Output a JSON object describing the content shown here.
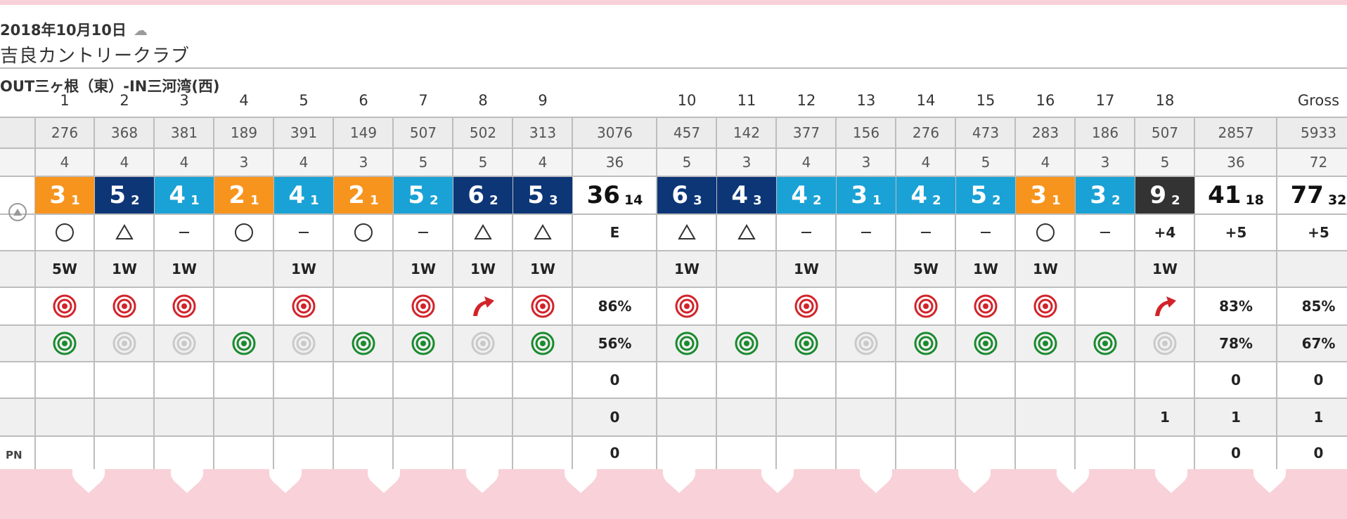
{
  "header": {
    "date": "2018年10月10日",
    "weather_icon": "cloud-icon",
    "club_name": "吉良カントリークラブ",
    "course_name": "OUT三ヶ根（東）-IN三河湾(西)"
  },
  "rows_labels": {
    "pn_label": "PN",
    "gross_label": "Gross"
  },
  "holes": [
    {
      "num": "1",
      "yard": "276",
      "par": "4",
      "score": "3",
      "putts": "1",
      "color": "#f7941d",
      "mark": "circle",
      "club": "5W",
      "fairway": "hit",
      "gir": "hit"
    },
    {
      "num": "2",
      "yard": "368",
      "par": "4",
      "score": "5",
      "putts": "2",
      "color": "#0d3677",
      "mark": "triangle",
      "club": "1W",
      "fairway": "hit",
      "gir": "miss"
    },
    {
      "num": "3",
      "yard": "381",
      "par": "4",
      "score": "4",
      "putts": "1",
      "color": "#1aa2d6",
      "mark": "dash",
      "club": "1W",
      "fairway": "hit",
      "gir": "miss"
    },
    {
      "num": "4",
      "yard": "189",
      "par": "3",
      "score": "2",
      "putts": "1",
      "color": "#f7941d",
      "mark": "circle",
      "club": "",
      "fairway": "",
      "gir": "hit"
    },
    {
      "num": "5",
      "yard": "391",
      "par": "4",
      "score": "4",
      "putts": "1",
      "color": "#1aa2d6",
      "mark": "dash",
      "club": "1W",
      "fairway": "hit",
      "gir": "miss"
    },
    {
      "num": "6",
      "yard": "149",
      "par": "3",
      "score": "2",
      "putts": "1",
      "color": "#f7941d",
      "mark": "circle",
      "club": "",
      "fairway": "",
      "gir": "hit"
    },
    {
      "num": "7",
      "yard": "507",
      "par": "5",
      "score": "5",
      "putts": "2",
      "color": "#1aa2d6",
      "mark": "dash",
      "club": "1W",
      "fairway": "hit",
      "gir": "hit"
    },
    {
      "num": "8",
      "yard": "502",
      "par": "5",
      "score": "6",
      "putts": "2",
      "color": "#0d3677",
      "mark": "triangle",
      "club": "1W",
      "fairway": "right",
      "gir": "miss"
    },
    {
      "num": "9",
      "yard": "313",
      "par": "4",
      "score": "5",
      "putts": "3",
      "color": "#0d3677",
      "mark": "triangle",
      "club": "1W",
      "fairway": "hit",
      "gir": "hit"
    },
    {
      "num": "10",
      "yard": "457",
      "par": "5",
      "score": "6",
      "putts": "3",
      "color": "#0d3677",
      "mark": "triangle",
      "club": "1W",
      "fairway": "hit",
      "gir": "hit"
    },
    {
      "num": "11",
      "yard": "142",
      "par": "3",
      "score": "4",
      "putts": "3",
      "color": "#0d3677",
      "mark": "triangle",
      "club": "",
      "fairway": "",
      "gir": "hit"
    },
    {
      "num": "12",
      "yard": "377",
      "par": "4",
      "score": "4",
      "putts": "2",
      "color": "#1aa2d6",
      "mark": "dash",
      "club": "1W",
      "fairway": "hit",
      "gir": "hit"
    },
    {
      "num": "13",
      "yard": "156",
      "par": "3",
      "score": "3",
      "putts": "1",
      "color": "#1aa2d6",
      "mark": "dash",
      "club": "",
      "fairway": "",
      "gir": "miss"
    },
    {
      "num": "14",
      "yard": "276",
      "par": "4",
      "score": "4",
      "putts": "2",
      "color": "#1aa2d6",
      "mark": "dash",
      "club": "5W",
      "fairway": "hit",
      "gir": "hit"
    },
    {
      "num": "15",
      "yard": "473",
      "par": "5",
      "score": "5",
      "putts": "2",
      "color": "#1aa2d6",
      "mark": "dash",
      "club": "1W",
      "fairway": "hit",
      "gir": "hit"
    },
    {
      "num": "16",
      "yard": "283",
      "par": "4",
      "score": "3",
      "putts": "1",
      "color": "#f7941d",
      "mark": "circle",
      "club": "1W",
      "fairway": "hit",
      "gir": "hit"
    },
    {
      "num": "17",
      "yard": "186",
      "par": "3",
      "score": "3",
      "putts": "2",
      "color": "#1aa2d6",
      "mark": "dash",
      "club": "",
      "fairway": "",
      "gir": "hit"
    },
    {
      "num": "18",
      "yard": "507",
      "par": "5",
      "score": "9",
      "putts": "2",
      "color": "#333333",
      "mark": "+4",
      "club": "1W",
      "fairway": "right",
      "gir": "miss"
    }
  ],
  "totals": {
    "out": {
      "yard": "3076",
      "par": "36",
      "score": "36",
      "putts": "14",
      "mark": "E",
      "fairway": "86%",
      "gir": "56%",
      "r1": "0",
      "r2": "0",
      "r3": "0"
    },
    "in": {
      "yard": "2857",
      "par": "36",
      "score": "41",
      "putts": "18",
      "mark": "+5",
      "fairway": "83%",
      "gir": "78%",
      "r1": "0",
      "r2": "1",
      "r3": "0"
    },
    "gross": {
      "yard": "5933",
      "par": "72",
      "score": "77",
      "putts": "32",
      "mark": "+5",
      "fairway": "85%",
      "gir": "67%",
      "r1": "0",
      "r2": "1",
      "r3": "0"
    },
    "hole18_r2": "1"
  },
  "colors": {
    "birdie": "#f7941d",
    "par": "#1aa2d6",
    "bogey": "#0d3677",
    "other": "#333333",
    "fairway_hit": "#d2232a",
    "gir_hit": "#1a8a2e",
    "gir_miss": "#c9c9c9"
  }
}
